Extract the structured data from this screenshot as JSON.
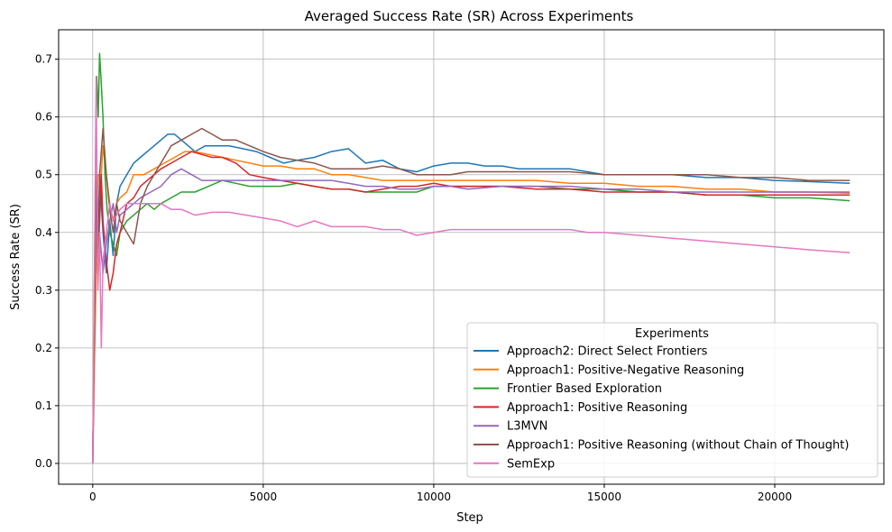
{
  "chart_data": {
    "type": "line",
    "title": "Averaged Success Rate (SR) Across Experiments",
    "xlabel": "Step",
    "ylabel": "Success Rate (SR)",
    "xlim": [
      -1000,
      23200
    ],
    "ylim": [
      -0.036,
      0.751
    ],
    "xticks": [
      0,
      5000,
      10000,
      15000,
      20000
    ],
    "xtick_labels": [
      "0",
      "5000",
      "10000",
      "15000",
      "20000"
    ],
    "yticks": [
      0.0,
      0.1,
      0.2,
      0.3,
      0.4,
      0.5,
      0.6,
      0.7
    ],
    "ytick_labels": [
      "0.0",
      "0.1",
      "0.2",
      "0.3",
      "0.4",
      "0.5",
      "0.6",
      "0.7"
    ],
    "grid": true,
    "legend": {
      "title": "Experiments",
      "position": "lower-right"
    },
    "series": [
      {
        "name": "Approach2: Direct Select Frontiers",
        "color": "#1f77b4",
        "x": [
          0,
          100,
          150,
          200,
          300,
          400,
          500,
          600,
          700,
          800,
          1000,
          1200,
          1400,
          1600,
          1800,
          2000,
          2200,
          2400,
          2600,
          2800,
          3000,
          3300,
          3600,
          4000,
          4400,
          4800,
          5200,
          5600,
          6000,
          6500,
          7000,
          7500,
          8000,
          8500,
          9000,
          9500,
          10000,
          10500,
          11000,
          11500,
          12000,
          12500,
          13000,
          13500,
          14000,
          14500,
          15000,
          16000,
          17000,
          18000,
          19000,
          20000,
          21000,
          22200
        ],
        "y": [
          0.0,
          0.5,
          0.33,
          0.5,
          0.4,
          0.33,
          0.42,
          0.36,
          0.45,
          0.48,
          0.5,
          0.52,
          0.53,
          0.54,
          0.55,
          0.56,
          0.57,
          0.57,
          0.56,
          0.55,
          0.54,
          0.55,
          0.55,
          0.55,
          0.545,
          0.54,
          0.53,
          0.52,
          0.525,
          0.53,
          0.54,
          0.545,
          0.52,
          0.525,
          0.51,
          0.505,
          0.515,
          0.52,
          0.52,
          0.515,
          0.515,
          0.51,
          0.51,
          0.51,
          0.51,
          0.505,
          0.5,
          0.5,
          0.5,
          0.495,
          0.495,
          0.49,
          0.488,
          0.485
        ]
      },
      {
        "name": "Approach1: Positive-Negative Reasoning",
        "color": "#ff7f0e",
        "x": [
          0,
          100,
          150,
          250,
          300,
          400,
          500,
          600,
          700,
          800,
          1000,
          1200,
          1500,
          1800,
          2100,
          2400,
          2700,
          3000,
          3400,
          3800,
          4200,
          4600,
          5000,
          5500,
          6000,
          6500,
          7000,
          7500,
          8000,
          8500,
          9000,
          9500,
          10000,
          10500,
          11000,
          12000,
          13000,
          14000,
          15000,
          16000,
          17000,
          18000,
          19000,
          20000,
          21000,
          22200
        ],
        "y": [
          0.0,
          0.33,
          0.5,
          0.5,
          0.55,
          0.5,
          0.45,
          0.42,
          0.45,
          0.46,
          0.47,
          0.5,
          0.5,
          0.51,
          0.52,
          0.53,
          0.54,
          0.54,
          0.535,
          0.53,
          0.525,
          0.52,
          0.515,
          0.515,
          0.51,
          0.51,
          0.5,
          0.5,
          0.495,
          0.49,
          0.49,
          0.49,
          0.49,
          0.49,
          0.49,
          0.49,
          0.49,
          0.485,
          0.485,
          0.48,
          0.48,
          0.475,
          0.475,
          0.47,
          0.47,
          0.468
        ]
      },
      {
        "name": "Frontier Based Exploration",
        "color": "#2ca02c",
        "x": [
          0,
          80,
          120,
          160,
          200,
          240,
          300,
          360,
          420,
          500,
          600,
          700,
          800,
          1000,
          1200,
          1400,
          1600,
          1800,
          2000,
          2300,
          2600,
          3000,
          3400,
          3800,
          4200,
          4600,
          5000,
          5500,
          6000,
          6500,
          7000,
          7500,
          8000,
          8500,
          9000,
          9500,
          10000,
          11000,
          12000,
          13000,
          14000,
          15000,
          16000,
          17000,
          18000,
          19000,
          20000,
          21000,
          22200
        ],
        "y": [
          0.0,
          0.5,
          0.67,
          0.6,
          0.71,
          0.67,
          0.6,
          0.5,
          0.44,
          0.4,
          0.38,
          0.36,
          0.4,
          0.42,
          0.43,
          0.44,
          0.45,
          0.44,
          0.45,
          0.46,
          0.47,
          0.47,
          0.48,
          0.49,
          0.485,
          0.48,
          0.48,
          0.48,
          0.485,
          0.48,
          0.475,
          0.475,
          0.47,
          0.47,
          0.47,
          0.47,
          0.48,
          0.48,
          0.48,
          0.48,
          0.475,
          0.475,
          0.47,
          0.47,
          0.465,
          0.465,
          0.46,
          0.46,
          0.455
        ]
      },
      {
        "name": "Approach1: Positive Reasoning",
        "color": "#d62728",
        "x": [
          0,
          100,
          150,
          250,
          300,
          400,
          500,
          600,
          700,
          800,
          1000,
          1200,
          1400,
          1600,
          1800,
          2000,
          2300,
          2600,
          2900,
          3200,
          3500,
          3800,
          4200,
          4600,
          5000,
          5500,
          6000,
          6500,
          7000,
          7500,
          8000,
          8500,
          9000,
          9500,
          10000,
          10500,
          11000,
          12000,
          13000,
          14000,
          15000,
          16000,
          17000,
          18000,
          19000,
          20000,
          21000,
          22200
        ],
        "y": [
          0.0,
          0.5,
          0.33,
          0.5,
          0.42,
          0.35,
          0.3,
          0.33,
          0.38,
          0.4,
          0.45,
          0.46,
          0.48,
          0.49,
          0.5,
          0.51,
          0.52,
          0.53,
          0.54,
          0.535,
          0.53,
          0.53,
          0.52,
          0.5,
          0.495,
          0.49,
          0.485,
          0.48,
          0.475,
          0.475,
          0.47,
          0.475,
          0.48,
          0.48,
          0.485,
          0.48,
          0.48,
          0.48,
          0.475,
          0.475,
          0.47,
          0.47,
          0.47,
          0.465,
          0.465,
          0.465,
          0.465,
          0.465
        ]
      },
      {
        "name": "L3MVN",
        "color": "#9467bd",
        "x": [
          0,
          100,
          200,
          300,
          400,
          500,
          600,
          700,
          800,
          1000,
          1200,
          1400,
          1700,
          2000,
          2300,
          2600,
          2900,
          3200,
          3600,
          4000,
          4500,
          5000,
          5500,
          6000,
          6500,
          7000,
          7500,
          8000,
          8500,
          9000,
          9500,
          10000,
          10500,
          11000,
          12000,
          13000,
          14000,
          15000,
          16000,
          17000,
          18000,
          19000,
          20000,
          21000,
          22200
        ],
        "y": [
          0.0,
          0.5,
          0.4,
          0.33,
          0.38,
          0.42,
          0.45,
          0.4,
          0.43,
          0.44,
          0.45,
          0.46,
          0.47,
          0.48,
          0.5,
          0.51,
          0.5,
          0.49,
          0.49,
          0.49,
          0.49,
          0.49,
          0.49,
          0.49,
          0.49,
          0.49,
          0.485,
          0.48,
          0.48,
          0.475,
          0.475,
          0.48,
          0.48,
          0.475,
          0.48,
          0.48,
          0.48,
          0.475,
          0.475,
          0.47,
          0.47,
          0.47,
          0.47,
          0.47,
          0.47
        ]
      },
      {
        "name": "Approach1: Positive Reasoning (without Chain of Thought)",
        "color": "#8c564b",
        "x": [
          0,
          100,
          150,
          200,
          300,
          400,
          500,
          600,
          700,
          800,
          1000,
          1200,
          1400,
          1600,
          1800,
          2000,
          2300,
          2600,
          2900,
          3200,
          3500,
          3800,
          4200,
          4600,
          5000,
          5500,
          6000,
          6500,
          7000,
          7500,
          8000,
          8500,
          9000,
          9500,
          10000,
          10500,
          11000,
          11500,
          12000,
          13000,
          14000,
          15000,
          16000,
          17000,
          18000,
          19000,
          20000,
          21000,
          22200
        ],
        "y": [
          0.0,
          0.5,
          0.33,
          0.5,
          0.58,
          0.5,
          0.44,
          0.4,
          0.45,
          0.42,
          0.4,
          0.38,
          0.45,
          0.48,
          0.5,
          0.52,
          0.55,
          0.56,
          0.57,
          0.58,
          0.57,
          0.56,
          0.56,
          0.55,
          0.54,
          0.53,
          0.525,
          0.52,
          0.51,
          0.51,
          0.51,
          0.515,
          0.51,
          0.5,
          0.5,
          0.5,
          0.505,
          0.505,
          0.505,
          0.505,
          0.505,
          0.5,
          0.5,
          0.5,
          0.5,
          0.495,
          0.495,
          0.49,
          0.49
        ]
      },
      {
        "name": "SemExp",
        "color": "#e377c2",
        "x": [
          0,
          100,
          150,
          200,
          250,
          300,
          400,
          500,
          600,
          700,
          800,
          1000,
          1200,
          1400,
          1600,
          1800,
          2000,
          2300,
          2600,
          3000,
          3500,
          4000,
          4500,
          5000,
          5500,
          6000,
          6500,
          7000,
          7500,
          8000,
          8500,
          9000,
          9500,
          10000,
          10500,
          11000,
          11500,
          12000,
          12500,
          13000,
          13500,
          14000,
          14500,
          15000,
          16000,
          17000,
          18000,
          19000,
          20000,
          21000,
          22200
        ],
        "y": [
          0.0,
          0.67,
          0.3,
          0.4,
          0.2,
          0.35,
          0.4,
          0.45,
          0.42,
          0.43,
          0.44,
          0.45,
          0.45,
          0.45,
          0.45,
          0.45,
          0.45,
          0.44,
          0.44,
          0.43,
          0.435,
          0.435,
          0.43,
          0.425,
          0.42,
          0.41,
          0.42,
          0.41,
          0.41,
          0.41,
          0.405,
          0.405,
          0.395,
          0.4,
          0.405,
          0.405,
          0.405,
          0.405,
          0.405,
          0.405,
          0.405,
          0.405,
          0.4,
          0.4,
          0.395,
          0.39,
          0.385,
          0.38,
          0.375,
          0.37,
          0.365
        ]
      }
    ]
  }
}
